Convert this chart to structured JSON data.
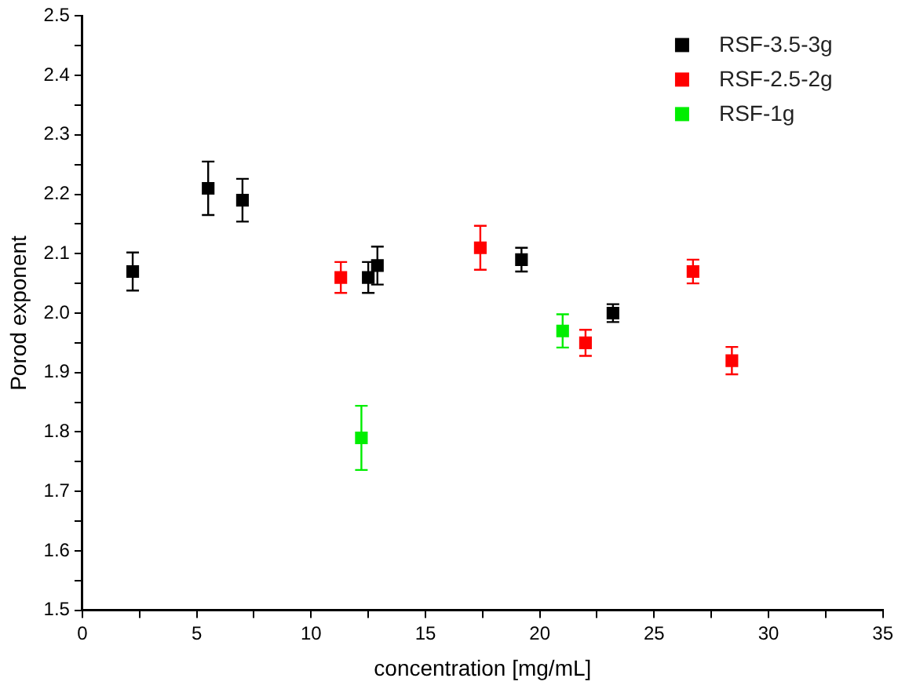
{
  "chart_data": {
    "type": "scatter",
    "xlabel": "concentration [mg/mL]",
    "ylabel": "Porod exponent",
    "marker": "square",
    "legend": "top right",
    "grid": false,
    "xlim": [
      0,
      35
    ],
    "xticks": [
      0,
      {
        "value": 2.5,
        "label": null
      },
      5,
      {
        "value": 7.5,
        "label": null
      },
      10,
      {
        "value": 12.5,
        "label": null
      },
      15,
      {
        "value": 17.5,
        "label": null
      },
      20,
      {
        "value": 22.5,
        "label": null
      },
      25,
      {
        "value": 27.5,
        "label": null
      },
      30,
      {
        "value": 32.5,
        "label": null
      },
      35
    ],
    "ylim": [
      1.5,
      2.5
    ],
    "yticks": [
      1.5,
      {
        "value": 1.55,
        "label": null
      },
      1.6,
      {
        "value": 1.65,
        "label": null
      },
      1.7,
      {
        "value": 1.75,
        "label": null
      },
      1.8,
      {
        "value": 1.85,
        "label": null
      },
      1.9,
      {
        "value": 1.95,
        "label": null
      },
      {
        "value": 2,
        "label": "2.0"
      },
      {
        "value": 2.05,
        "label": null
      },
      2.1,
      {
        "value": 2.15,
        "label": null
      },
      2.2,
      {
        "value": 2.25,
        "label": null
      },
      2.3,
      {
        "value": 2.35,
        "label": null
      },
      2.4,
      {
        "value": 2.45,
        "label": null
      },
      2.5
    ],
    "series": [
      {
        "name": "RSF-3.5-3g",
        "color": "#000000",
        "x": [
          2.2,
          5.5,
          7.0,
          12.5,
          12.9,
          19.2,
          23.2
        ],
        "values": [
          2.07,
          2.21,
          2.19,
          2.06,
          2.08,
          2.09,
          2.0
        ],
        "errors": [
          0.032,
          0.045,
          0.036,
          0.026,
          0.032,
          0.02,
          0.015
        ]
      },
      {
        "name": "RSF-2.5-2g",
        "color": "#ff0000",
        "x": [
          11.3,
          17.4,
          22.0,
          26.7,
          28.4
        ],
        "values": [
          2.06,
          2.11,
          1.95,
          2.07,
          1.92
        ],
        "errors": [
          0.026,
          0.037,
          0.022,
          0.02,
          0.023
        ]
      },
      {
        "name": "RSF-1g",
        "color": "#00ee00",
        "x": [
          12.2,
          21.0
        ],
        "values": [
          1.79,
          1.97
        ],
        "errors": [
          0.054,
          0.028
        ]
      }
    ]
  }
}
